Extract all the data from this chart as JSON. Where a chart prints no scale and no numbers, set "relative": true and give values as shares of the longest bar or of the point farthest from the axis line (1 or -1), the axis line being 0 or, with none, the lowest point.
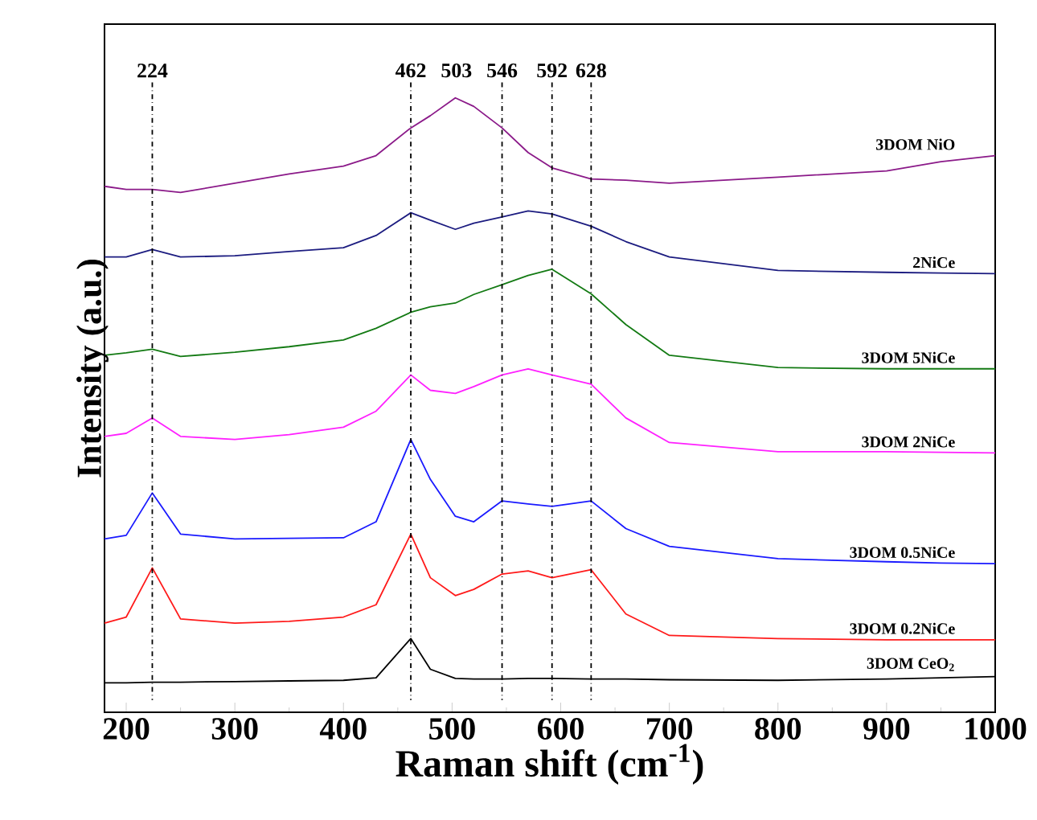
{
  "chart_data": {
    "type": "line",
    "relative": true,
    "xlabel": "Raman shift (cm$^{-1}$)",
    "ylabel": "Intensity (a.u.)",
    "xlim": [
      180,
      1000
    ],
    "xticks": [
      200,
      300,
      400,
      500,
      600,
      700,
      800,
      900,
      1000
    ],
    "tick_labels": "x",
    "grid": false,
    "x": [
      180,
      200,
      224,
      250,
      300,
      350,
      400,
      430,
      462,
      480,
      503,
      520,
      546,
      570,
      592,
      628,
      660,
      700,
      800,
      900,
      950,
      1000
    ],
    "series": [
      {
        "name": "3DOM NiO",
        "color": "#8b1a89",
        "values": [
          0.856,
          0.851,
          0.851,
          0.846,
          0.861,
          0.876,
          0.889,
          0.906,
          0.951,
          0.971,
          1.0,
          0.986,
          0.951,
          0.911,
          0.886,
          0.868,
          0.866,
          0.861,
          0.871,
          0.881,
          0.896,
          0.906
        ]
      },
      {
        "name": "2NiCe",
        "color": "#1c1c80",
        "values": [
          0.741,
          0.741,
          0.753,
          0.741,
          0.743,
          0.75,
          0.756,
          0.776,
          0.813,
          0.801,
          0.786,
          0.796,
          0.806,
          0.816,
          0.811,
          0.791,
          0.766,
          0.741,
          0.719,
          0.716,
          0.715,
          0.714
        ]
      },
      {
        "name": "3DOM 5NiCe",
        "color": "#137a13",
        "values": [
          0.581,
          0.585,
          0.591,
          0.579,
          0.586,
          0.595,
          0.606,
          0.625,
          0.651,
          0.66,
          0.666,
          0.68,
          0.696,
          0.711,
          0.721,
          0.681,
          0.631,
          0.581,
          0.561,
          0.559,
          0.559,
          0.559
        ]
      },
      {
        "name": "3DOM 2NiCe",
        "color": "#ff20ff",
        "values": [
          0.449,
          0.454,
          0.479,
          0.449,
          0.444,
          0.452,
          0.464,
          0.49,
          0.549,
          0.524,
          0.519,
          0.53,
          0.549,
          0.559,
          0.549,
          0.534,
          0.479,
          0.439,
          0.424,
          0.424,
          0.423,
          0.422
        ]
      },
      {
        "name": "3DOM 0.5NiCe",
        "color": "#1a1aff",
        "values": [
          0.282,
          0.288,
          0.357,
          0.29,
          0.282,
          0.283,
          0.284,
          0.31,
          0.444,
          0.379,
          0.319,
          0.31,
          0.344,
          0.339,
          0.335,
          0.344,
          0.299,
          0.27,
          0.25,
          0.245,
          0.243,
          0.242
        ]
      },
      {
        "name": "3DOM 0.2NiCe",
        "color": "#ff1a1a",
        "values": [
          0.145,
          0.155,
          0.235,
          0.152,
          0.145,
          0.148,
          0.155,
          0.175,
          0.29,
          0.219,
          0.19,
          0.2,
          0.225,
          0.23,
          0.219,
          0.232,
          0.16,
          0.125,
          0.12,
          0.118,
          0.118,
          0.118
        ]
      },
      {
        "name": "3DOM CeO$_{2}$",
        "color": "#000000",
        "values": [
          0.048,
          0.048,
          0.049,
          0.049,
          0.05,
          0.051,
          0.052,
          0.056,
          0.12,
          0.07,
          0.055,
          0.054,
          0.054,
          0.055,
          0.055,
          0.054,
          0.054,
          0.053,
          0.052,
          0.054,
          0.056,
          0.058
        ]
      }
    ],
    "ref_lines": [
      {
        "axis": "x",
        "value": 224,
        "label": "224",
        "line_style": "dashdot"
      },
      {
        "axis": "x",
        "value": 462,
        "label": "462",
        "line_style": "dashdot"
      },
      {
        "axis": "x",
        "value": 546,
        "label": "546",
        "line_style": "dashdot"
      },
      {
        "axis": "x",
        "value": 592,
        "label": "592",
        "line_style": "dashdot"
      },
      {
        "axis": "x",
        "value": 628,
        "label": "628",
        "line_style": "dashdot"
      }
    ],
    "annotations": [
      "503"
    ]
  }
}
